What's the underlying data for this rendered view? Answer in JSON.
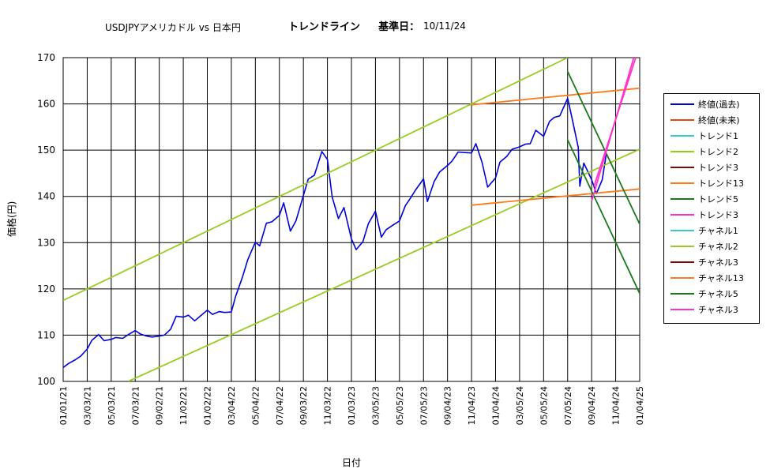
{
  "title": {
    "pair": "USDJPYアメリカドル vs 日本円",
    "chart_kind": "トレンドライン",
    "base_date_label": "基準日：",
    "base_date": "10/11/24"
  },
  "axes": {
    "ylabel": "価格(円)",
    "xlabel": "日付"
  },
  "colors": {
    "close_past": "#0000dd",
    "close_future": "#e8441a",
    "trend1": "#33cccc",
    "trend2": "#99cc22",
    "trend3_dark": "#7a0a0a",
    "trend13": "#ff7a1a",
    "trend5": "#1a7a1a",
    "trend3_magenta": "#ff33cc",
    "grid": "#000000"
  },
  "legend": [
    {
      "label": "終値(過去)",
      "color": "#0000dd"
    },
    {
      "label": "終値(未来)",
      "color": "#e8441a"
    },
    {
      "label": "トレンド1",
      "color": "#33cccc"
    },
    {
      "label": "トレンド2",
      "color": "#99cc22"
    },
    {
      "label": "トレンド3",
      "color": "#7a0a0a"
    },
    {
      "label": "トレンド13",
      "color": "#ff7a1a"
    },
    {
      "label": "トレンド5",
      "color": "#1a7a1a"
    },
    {
      "label": "トレンド3",
      "color": "#ff33cc"
    },
    {
      "label": "チャネル1",
      "color": "#33cccc"
    },
    {
      "label": "チャネル2",
      "color": "#99cc22"
    },
    {
      "label": "チャネル3",
      "color": "#7a0a0a"
    },
    {
      "label": "チャネル13",
      "color": "#ff7a1a"
    },
    {
      "label": "チャネル5",
      "color": "#1a7a1a"
    },
    {
      "label": "チャネル3",
      "color": "#ff33cc"
    }
  ],
  "chart_data": {
    "type": "line",
    "ylim": [
      100,
      170
    ],
    "yticks": [
      100,
      110,
      120,
      130,
      140,
      150,
      160,
      170
    ],
    "xticks": [
      "01/01/21",
      "03/03/21",
      "05/03/21",
      "07/03/21",
      "09/02/21",
      "11/02/21",
      "01/02/22",
      "03/04/22",
      "05/04/22",
      "07/04/22",
      "09/03/22",
      "11/03/22",
      "01/03/23",
      "03/05/23",
      "05/05/23",
      "07/05/23",
      "09/04/23",
      "11/04/23",
      "01/04/24",
      "03/05/24",
      "05/05/24",
      "07/05/24",
      "09/04/24",
      "11/04/24",
      "01/04/25"
    ],
    "grid": true,
    "series": [
      {
        "name": "終値(過去)",
        "x": [
          "01/01/21",
          "01/15/21",
          "02/01/21",
          "02/15/21",
          "03/03/21",
          "03/15/21",
          "04/01/21",
          "04/15/21",
          "05/03/21",
          "05/15/21",
          "06/01/21",
          "06/15/21",
          "07/03/21",
          "07/15/21",
          "08/01/21",
          "08/15/21",
          "09/02/21",
          "09/15/21",
          "10/01/21",
          "10/15/21",
          "11/02/21",
          "11/15/21",
          "12/01/21",
          "12/15/21",
          "01/02/22",
          "01/15/22",
          "02/01/22",
          "02/15/22",
          "03/04/22",
          "03/15/22",
          "04/01/22",
          "04/15/22",
          "05/04/22",
          "05/15/22",
          "06/01/22",
          "06/15/22",
          "07/04/22",
          "07/15/22",
          "08/01/22",
          "08/15/22",
          "09/03/22",
          "09/15/22",
          "10/01/22",
          "10/20/22",
          "11/03/22",
          "11/15/22",
          "12/01/22",
          "12/15/22",
          "01/03/23",
          "01/15/23",
          "02/01/23",
          "02/15/23",
          "03/05/23",
          "03/20/23",
          "04/01/23",
          "04/15/23",
          "05/05/23",
          "05/20/23",
          "06/01/23",
          "06/15/23",
          "07/05/23",
          "07/15/23",
          "08/01/23",
          "08/15/23",
          "09/04/23",
          "09/15/23",
          "10/01/23",
          "10/15/23",
          "11/04/23",
          "11/15/23",
          "12/01/23",
          "12/15/23",
          "01/04/24",
          "01/15/24",
          "02/01/24",
          "02/15/24",
          "03/05/24",
          "03/20/24",
          "04/01/24",
          "04/15/24",
          "05/05/24",
          "05/20/24",
          "06/01/24",
          "06/15/24",
          "07/05/24",
          "07/15/24",
          "08/01/24",
          "08/05/24",
          "08/15/24",
          "09/04/24",
          "09/16/24",
          "10/01/24",
          "10/11/24"
        ],
        "values": [
          103.0,
          103.9,
          104.7,
          105.5,
          107.0,
          108.9,
          110.1,
          108.8,
          109.1,
          109.5,
          109.3,
          110.1,
          111.0,
          110.3,
          109.8,
          109.6,
          109.8,
          110.0,
          111.3,
          114.1,
          113.9,
          114.3,
          113.1,
          114.1,
          115.4,
          114.5,
          115.1,
          114.9,
          115.0,
          118.4,
          122.5,
          126.4,
          130.1,
          129.3,
          134.2,
          134.5,
          135.9,
          138.6,
          132.5,
          134.7,
          140.2,
          143.7,
          144.6,
          149.7,
          148.0,
          139.9,
          135.2,
          137.6,
          130.8,
          128.5,
          130.2,
          134.1,
          136.8,
          131.2,
          132.8,
          133.6,
          134.7,
          138.0,
          139.5,
          141.4,
          143.8,
          138.9,
          143.2,
          145.3,
          146.7,
          147.6,
          149.6,
          149.5,
          149.4,
          151.4,
          147.3,
          142.0,
          144.0,
          147.4,
          148.6,
          150.2,
          150.7,
          151.3,
          151.4,
          154.3,
          153.0,
          156.2,
          157.1,
          157.4,
          161.2,
          157.4,
          150.6,
          142.2,
          147.2,
          143.6,
          140.6,
          143.6,
          149.1
        ]
      },
      {
        "name": "トレンド2",
        "x": [
          "01/01/21",
          "07/05/24"
        ],
        "values": [
          117.5,
          170.0
        ]
      },
      {
        "name": "チャネル2",
        "x": [
          "06/15/21",
          "01/04/25"
        ],
        "values": [
          100.0,
          150.2
        ]
      },
      {
        "name": "トレンド13",
        "x": [
          "11/04/23",
          "01/04/25"
        ],
        "values": [
          159.8,
          163.4
        ]
      },
      {
        "name": "チャネル13",
        "x": [
          "11/04/23",
          "01/04/25"
        ],
        "values": [
          138.1,
          141.6
        ]
      },
      {
        "name": "トレンド5",
        "x": [
          "07/05/24",
          "01/04/25"
        ],
        "values": [
          167.0,
          134.0
        ]
      },
      {
        "name": "チャネル5",
        "x": [
          "07/05/24",
          "01/04/25"
        ],
        "values": [
          152.2,
          119.0
        ]
      },
      {
        "name": "トレンド3",
        "x": [
          "09/04/24",
          "12/20/24"
        ],
        "values": [
          139.0,
          170.0
        ]
      },
      {
        "name": "チャネル3",
        "x": [
          "09/10/24",
          "12/25/24"
        ],
        "values": [
          142.2,
          170.0
        ]
      }
    ]
  }
}
